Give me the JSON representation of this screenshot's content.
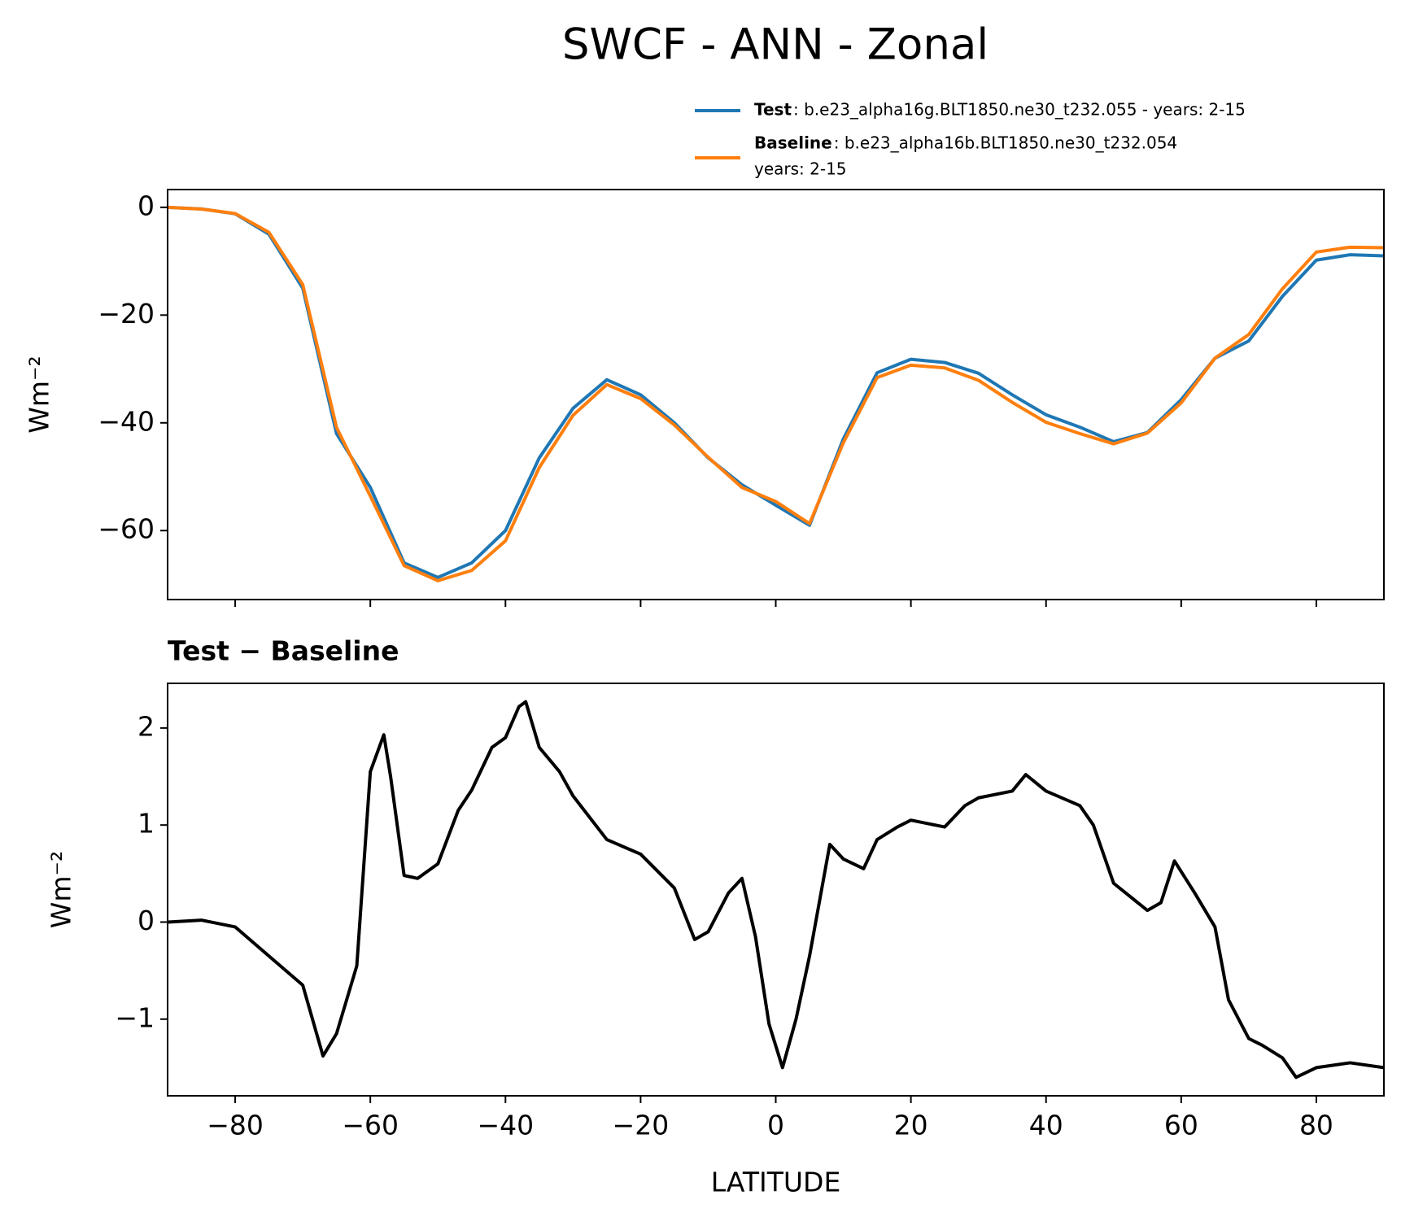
{
  "title": "SWCF - ANN - Zonal",
  "chart_data": [
    {
      "type": "line",
      "x": [
        -90,
        -85,
        -80,
        -75,
        -70,
        -65,
        -60,
        -55,
        -50,
        -45,
        -40,
        -35,
        -30,
        -25,
        -20,
        -15,
        -10,
        -5,
        0,
        5,
        10,
        15,
        20,
        25,
        30,
        35,
        40,
        45,
        50,
        55,
        60,
        65,
        70,
        75,
        80,
        85,
        90
      ],
      "series": [
        {
          "name": "Test",
          "label": ": b.e23_alpha16g.BLT1850.ne30_t232.055 - years: 2-15",
          "color": "#1f77b4",
          "values": [
            0,
            -0.3,
            -1.2,
            -5,
            -15,
            -42,
            -52,
            -66,
            -68.7,
            -66,
            -60,
            -46.5,
            -37.3,
            -32,
            -34.8,
            -40,
            -46.5,
            -51.5,
            -55.3,
            -59,
            -43,
            -30.7,
            -28.2,
            -28.8,
            -30.8,
            -34.8,
            -38.5,
            -40.8,
            -43.5,
            -41.8,
            -35.7,
            -28,
            -24.8,
            -16.5,
            -9.8,
            -8.8,
            -9
          ]
        },
        {
          "name": "Baseline",
          "label": [
            ": b.e23_alpha16b.BLT1850.ne30_t232.054",
            "years: 2-15"
          ],
          "color": "#ff7f0e",
          "values": [
            0,
            -0.32,
            -1.15,
            -4.65,
            -14.35,
            -40.85,
            -53.6,
            -66.5,
            -69.3,
            -67.4,
            -61.9,
            -48.3,
            -38.6,
            -32.9,
            -35.5,
            -40.4,
            -46.4,
            -52,
            -54.6,
            -58.7,
            -43.7,
            -31.6,
            -29.3,
            -29.8,
            -32.1,
            -36.2,
            -39.9,
            -42,
            -43.9,
            -41.9,
            -36.3,
            -28,
            -23.6,
            -15.1,
            -8.3,
            -7.4,
            -7.5
          ]
        }
      ],
      "xlim": [
        -90,
        90
      ],
      "xticks": [
        {
          "value": -80,
          "label": "−80"
        },
        {
          "value": -60,
          "label": "−60"
        },
        {
          "value": -40,
          "label": "−40"
        },
        {
          "value": -20,
          "label": "−20"
        },
        0,
        20,
        40,
        60,
        80
      ],
      "ylim": [
        -72.8,
        3.3
      ],
      "yticks": [
        {
          "value": -60,
          "label": "−60"
        },
        {
          "value": -40,
          "label": "−40"
        },
        {
          "value": -20,
          "label": "−20"
        },
        0
      ],
      "ylabel": "Wm⁻²"
    },
    {
      "type": "line",
      "title": "Test − Baseline",
      "x": [
        -90,
        -85,
        -80,
        -75,
        -70,
        -67,
        -65,
        -62,
        -60,
        -58,
        -57,
        -55,
        -53,
        -50,
        -47,
        -45,
        -42,
        -40,
        -38,
        -37,
        -35,
        -32,
        -30,
        -25,
        -20,
        -15,
        -12,
        -10,
        -7,
        -5,
        -3,
        -1,
        1,
        3,
        5,
        8,
        10,
        13,
        15,
        18,
        20,
        25,
        28,
        30,
        35,
        37,
        40,
        45,
        47,
        50,
        55,
        57,
        59,
        62,
        65,
        67,
        70,
        72,
        75,
        77,
        80,
        85,
        90
      ],
      "values": [
        0,
        0.02,
        -0.05,
        -0.35,
        -0.65,
        -1.38,
        -1.15,
        -0.45,
        1.55,
        1.93,
        1.5,
        0.48,
        0.45,
        0.6,
        1.15,
        1.36,
        1.8,
        1.9,
        2.22,
        2.27,
        1.8,
        1.55,
        1.3,
        0.85,
        0.7,
        0.35,
        -0.18,
        -0.1,
        0.3,
        0.45,
        -0.15,
        -1.05,
        -1.5,
        -1,
        -0.35,
        0.8,
        0.65,
        0.55,
        0.85,
        0.98,
        1.05,
        0.98,
        1.2,
        1.28,
        1.35,
        1.52,
        1.35,
        1.2,
        1,
        0.4,
        0.12,
        0.2,
        0.63,
        0.3,
        -0.05,
        -0.8,
        -1.2,
        -1.27,
        -1.4,
        -1.6,
        -1.5,
        -1.45,
        -1.5
      ],
      "color": "#000000",
      "xlim": [
        -90,
        90
      ],
      "xticks": [
        {
          "value": -80,
          "label": "−80"
        },
        {
          "value": -60,
          "label": "−60"
        },
        {
          "value": -40,
          "label": "−40"
        },
        {
          "value": -20,
          "label": "−20"
        },
        0,
        20,
        40,
        60,
        80
      ],
      "ylim": [
        -1.79,
        2.46
      ],
      "yticks": [
        {
          "value": -1,
          "label": "−1"
        },
        0,
        1,
        2
      ],
      "ylabel": "Wm⁻²",
      "xlabel": "LATITUDE"
    }
  ]
}
